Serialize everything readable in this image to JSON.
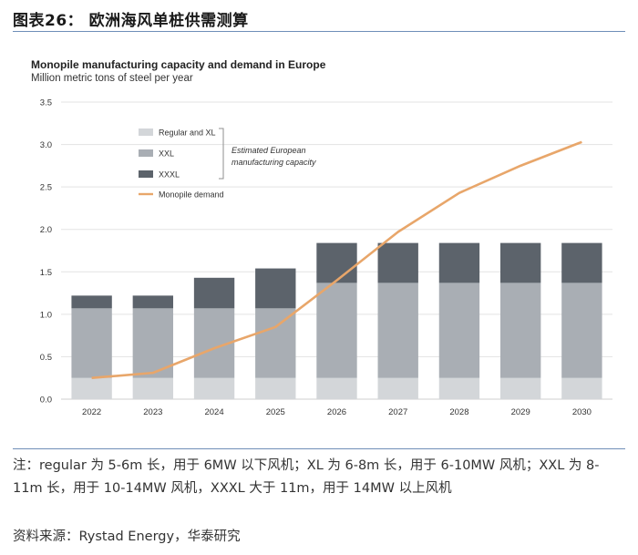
{
  "figure": {
    "title": "图表26：  欧洲海风单桩供需测算",
    "note": "注：regular 为 5-6m 长，用于 6MW 以下风机；XL 为 6-8m 长，用于 6-10MW 风机；XXL 为 8-11m 长，用于 10-14MW 风机，XXXL 大于 11m，用于 14MW 以上风机",
    "source": "资料来源：Rystad Energy，华泰研究"
  },
  "colors": {
    "regular_xl": "#d3d6d9",
    "xxl": "#a9aeb4",
    "xxxl": "#5c636b",
    "demand": "#e8a66a",
    "grid": "#e3e3e3",
    "axis_text": "#333333"
  },
  "chart_data": {
    "type": "bar",
    "stacked": true,
    "title": "Monopile manufacturing capacity and demand in Europe",
    "subtitle": "Million metric tons of steel per year",
    "categories": [
      "2022",
      "2023",
      "2024",
      "2025",
      "2026",
      "2027",
      "2028",
      "2029",
      "2030"
    ],
    "ylim": [
      0,
      3.5
    ],
    "yticks": [
      "0.0",
      "0.5",
      "1.0",
      "1.5",
      "2.0",
      "2.5",
      "3.0",
      "3.5"
    ],
    "ytick_values": [
      0,
      0.5,
      1.0,
      1.5,
      2.0,
      2.5,
      3.0,
      3.5
    ],
    "grid": true,
    "series": [
      {
        "name": "Regular and XL",
        "values": [
          0.25,
          0.25,
          0.25,
          0.25,
          0.25,
          0.25,
          0.25,
          0.25,
          0.25
        ]
      },
      {
        "name": "XXL",
        "values": [
          0.82,
          0.82,
          0.82,
          0.82,
          1.12,
          1.12,
          1.12,
          1.12,
          1.12
        ]
      },
      {
        "name": "XXXL",
        "values": [
          0.15,
          0.15,
          0.36,
          0.47,
          0.47,
          0.47,
          0.47,
          0.47,
          0.47
        ]
      }
    ],
    "line_series": {
      "name": "Monopile demand",
      "values": [
        0.25,
        0.31,
        0.6,
        0.85,
        1.4,
        1.97,
        2.43,
        2.75,
        3.03
      ]
    },
    "legend": {
      "placement": "top-left",
      "bracket_label_line1": "Estimated European",
      "bracket_label_line2": "manufacturing capacity"
    }
  }
}
